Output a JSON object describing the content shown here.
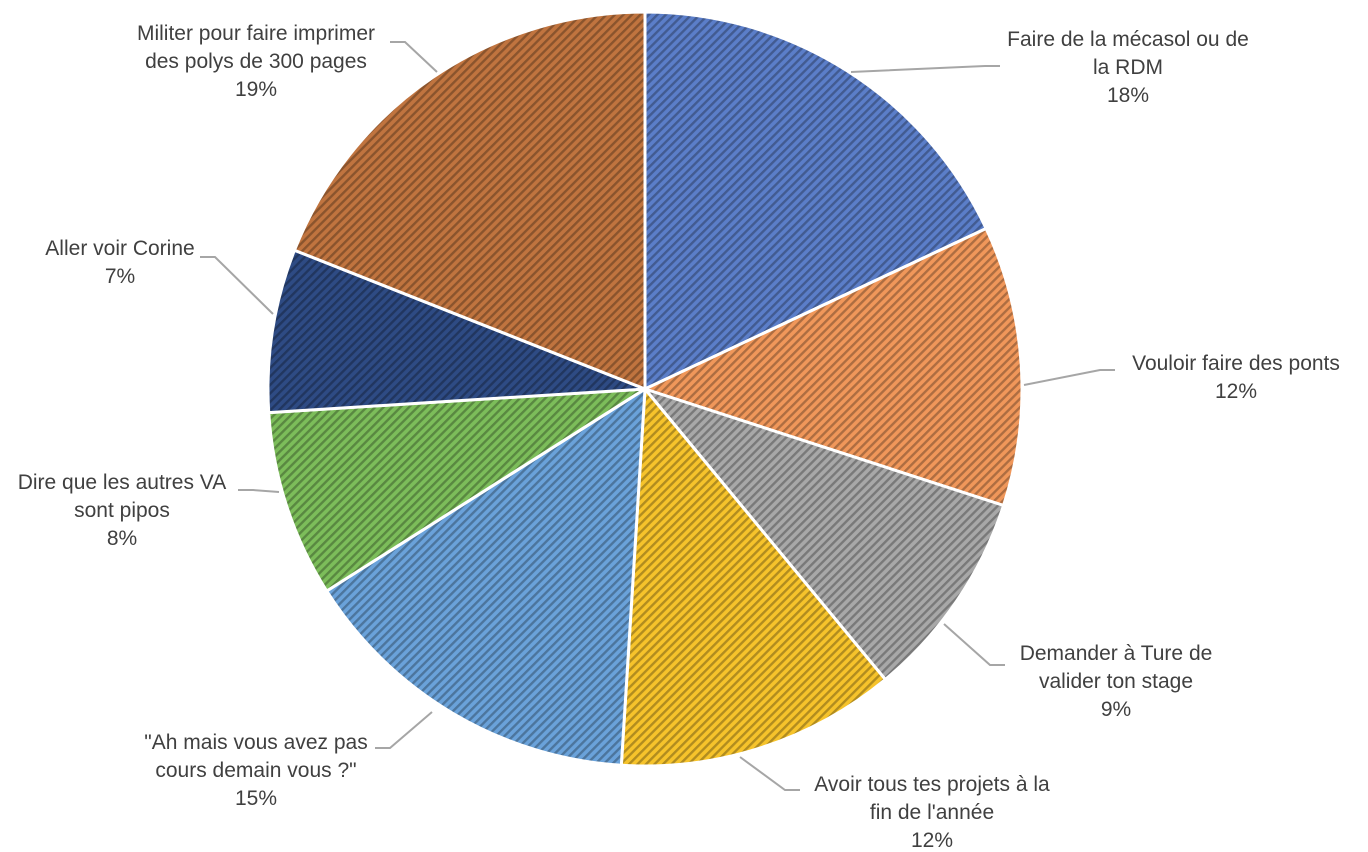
{
  "chart_data": {
    "type": "pie",
    "categories": [
      "Faire de la mécasol ou de la RDM",
      "Vouloir faire des ponts",
      "Demander à Ture de valider ton stage",
      "Avoir tous tes projets à la fin de l'année",
      "\"Ah mais vous avez pas cours demain vous ?\"",
      "Dire que les autres VA sont pipos",
      "Aller voir Corine",
      "Militer pour faire imprimer des polys de 300 pages"
    ],
    "values": [
      18,
      12,
      9,
      12,
      15,
      8,
      7,
      19
    ],
    "unit": "%",
    "colors": [
      "#5b7ec9",
      "#f0975a",
      "#a8a8a8",
      "#f6c32b",
      "#6aa2da",
      "#7cbd5a",
      "#2e4b84",
      "#c0743f"
    ],
    "labels": [
      {
        "lines": [
          "Faire de la mécasol ou de",
          "la RDM"
        ],
        "pct": "18%"
      },
      {
        "lines": [
          "Vouloir faire des ponts"
        ],
        "pct": "12%"
      },
      {
        "lines": [
          "Demander à Ture de",
          "valider ton stage"
        ],
        "pct": "9%"
      },
      {
        "lines": [
          "Avoir tous tes projets à la",
          "fin de l'année"
        ],
        "pct": "12%"
      },
      {
        "lines": [
          "\"Ah mais vous avez pas",
          "cours demain vous ?\""
        ],
        "pct": "15%"
      },
      {
        "lines": [
          "Dire que les autres VA",
          "sont pipos"
        ],
        "pct": "8%"
      },
      {
        "lines": [
          "Aller voir Corine"
        ],
        "pct": "7%"
      },
      {
        "lines": [
          "Militer pour faire imprimer",
          "des polys de 300 pages"
        ],
        "pct": "19%"
      }
    ],
    "start_angle": "12 o'clock",
    "direction": "clockwise",
    "fill_style": "diagonal hatch",
    "legend": "none"
  }
}
